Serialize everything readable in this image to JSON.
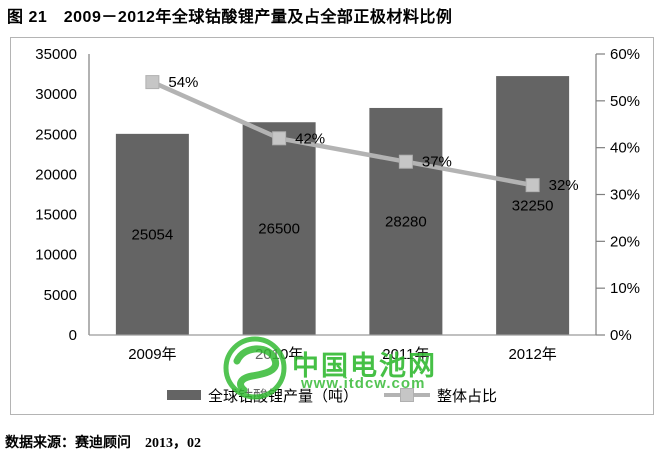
{
  "figure": {
    "title": "图 21　2009－2012年全球钴酸锂产量及占全部正极材料比例",
    "source": "数据来源：赛迪顾问　2013，02"
  },
  "watermark": {
    "name": "中国电池网",
    "url": "www.itdcw.com",
    "color": "#2db82d"
  },
  "chart_data": {
    "type": "bar+line combo",
    "categories": [
      "2009年",
      "2010年",
      "2011年",
      "2012年"
    ],
    "series": [
      {
        "name": "全球钴酸锂产量（吨）",
        "type": "bar",
        "axis": "left",
        "values": [
          25054,
          26500,
          28280,
          32250
        ],
        "color": "#646464"
      },
      {
        "name": "整体占比",
        "type": "line",
        "axis": "right",
        "values": [
          54,
          42,
          37,
          32
        ],
        "labels": [
          "54%",
          "42%",
          "37%",
          "32%"
        ],
        "color": "#b3b3b3",
        "marker_color": "#c6c6c6"
      }
    ],
    "left_axis": {
      "min": 0,
      "max": 35000,
      "step": 5000,
      "ticks": [
        "0",
        "5000",
        "10000",
        "15000",
        "20000",
        "25000",
        "30000",
        "35000"
      ]
    },
    "right_axis": {
      "min": 0,
      "max": 60,
      "step": 10,
      "ticks": [
        "0%",
        "10%",
        "20%",
        "30%",
        "40%",
        "50%",
        "60%"
      ]
    },
    "grid": false,
    "legend_position": "bottom"
  }
}
